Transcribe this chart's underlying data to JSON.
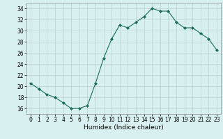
{
  "x": [
    0,
    1,
    2,
    3,
    4,
    5,
    6,
    7,
    8,
    9,
    10,
    11,
    12,
    13,
    14,
    15,
    16,
    17,
    18,
    19,
    20,
    21,
    22,
    23
  ],
  "y": [
    20.5,
    19.5,
    18.5,
    18.0,
    17.0,
    16.0,
    16.0,
    16.5,
    20.5,
    25.0,
    28.5,
    31.0,
    30.5,
    31.5,
    32.5,
    34.0,
    33.5,
    33.5,
    31.5,
    30.5,
    30.5,
    29.5,
    28.5,
    26.5
  ],
  "line_color": "#1a6b5a",
  "marker": "D",
  "marker_size": 2,
  "bg_color": "#d8f0f0",
  "grid_color": "#b8d4d4",
  "xlabel": "Humidex (Indice chaleur)",
  "ylim": [
    15,
    35
  ],
  "xlim": [
    -0.5,
    23.5
  ],
  "yticks": [
    16,
    18,
    20,
    22,
    24,
    26,
    28,
    30,
    32,
    34
  ],
  "xticks": [
    0,
    1,
    2,
    3,
    4,
    5,
    6,
    7,
    8,
    9,
    10,
    11,
    12,
    13,
    14,
    15,
    16,
    17,
    18,
    19,
    20,
    21,
    22,
    23
  ],
  "label_fontsize": 6.5,
  "tick_fontsize": 5.5
}
